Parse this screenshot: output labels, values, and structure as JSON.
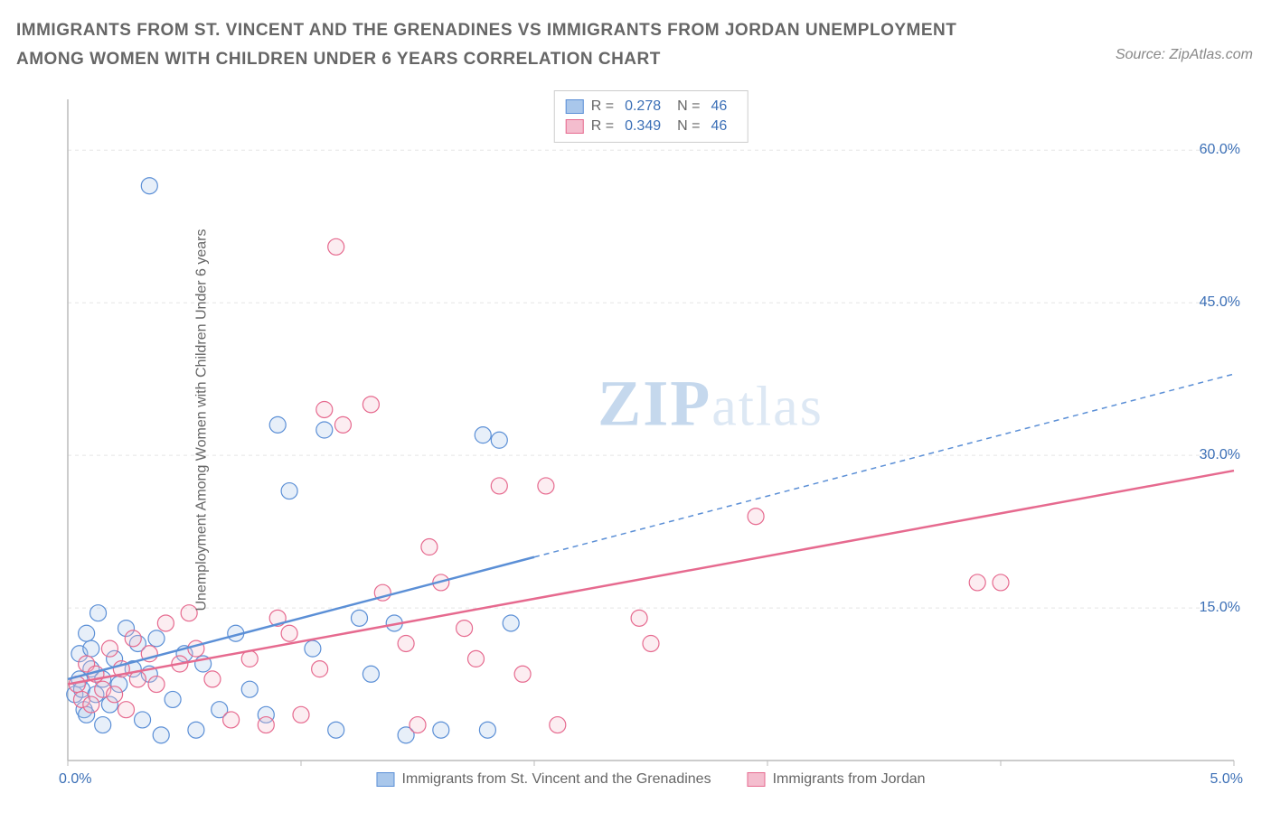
{
  "title": "IMMIGRANTS FROM ST. VINCENT AND THE GRENADINES VS IMMIGRANTS FROM JORDAN UNEMPLOYMENT AMONG WOMEN WITH CHILDREN UNDER 6 YEARS CORRELATION CHART",
  "source": "Source: ZipAtlas.com",
  "y_axis_label": "Unemployment Among Women with Children Under 6 years",
  "watermark_a": "ZIP",
  "watermark_b": "atlas",
  "chart": {
    "type": "scatter",
    "background_color": "#ffffff",
    "grid_color": "#e5e5e5",
    "axis_color": "#bbbbbb",
    "xlim": [
      0.0,
      5.0
    ],
    "ylim": [
      0.0,
      65.0
    ],
    "x_origin_label": "0.0%",
    "x_max_label": "5.0%",
    "x_ticks": [
      0.0,
      1.0,
      2.0,
      3.0,
      4.0,
      5.0
    ],
    "y_ticks": [
      {
        "v": 15.0,
        "label": "15.0%"
      },
      {
        "v": 30.0,
        "label": "30.0%"
      },
      {
        "v": 45.0,
        "label": "45.0%"
      },
      {
        "v": 60.0,
        "label": "60.0%"
      }
    ],
    "marker_radius": 9,
    "marker_stroke_width": 1.2,
    "marker_fill_opacity": 0.28,
    "series": [
      {
        "id": "svg",
        "name": "Immigrants from St. Vincent and the Grenadines",
        "color": "#5b8fd6",
        "fill": "#a9c7eb",
        "R": 0.278,
        "N": 46,
        "trend": {
          "x1": 0.0,
          "y1": 8.0,
          "x2": 2.0,
          "y2": 20.0,
          "x_data_max": 2.0,
          "extend_to": 5.0
        },
        "points": [
          {
            "x": 0.03,
            "y": 6.5
          },
          {
            "x": 0.05,
            "y": 8.0
          },
          {
            "x": 0.05,
            "y": 10.5
          },
          {
            "x": 0.06,
            "y": 7.0
          },
          {
            "x": 0.07,
            "y": 5.0
          },
          {
            "x": 0.08,
            "y": 12.5
          },
          {
            "x": 0.08,
            "y": 4.5
          },
          {
            "x": 0.1,
            "y": 9.0
          },
          {
            "x": 0.1,
            "y": 11.0
          },
          {
            "x": 0.12,
            "y": 6.5
          },
          {
            "x": 0.13,
            "y": 14.5
          },
          {
            "x": 0.15,
            "y": 8.0
          },
          {
            "x": 0.15,
            "y": 3.5
          },
          {
            "x": 0.18,
            "y": 5.5
          },
          {
            "x": 0.2,
            "y": 10.0
          },
          {
            "x": 0.22,
            "y": 7.5
          },
          {
            "x": 0.25,
            "y": 13.0
          },
          {
            "x": 0.28,
            "y": 9.0
          },
          {
            "x": 0.3,
            "y": 11.5
          },
          {
            "x": 0.32,
            "y": 4.0
          },
          {
            "x": 0.35,
            "y": 8.5
          },
          {
            "x": 0.38,
            "y": 12.0
          },
          {
            "x": 0.4,
            "y": 2.5
          },
          {
            "x": 0.35,
            "y": 56.5
          },
          {
            "x": 0.45,
            "y": 6.0
          },
          {
            "x": 0.5,
            "y": 10.5
          },
          {
            "x": 0.55,
            "y": 3.0
          },
          {
            "x": 0.58,
            "y": 9.5
          },
          {
            "x": 0.65,
            "y": 5.0
          },
          {
            "x": 0.72,
            "y": 12.5
          },
          {
            "x": 0.78,
            "y": 7.0
          },
          {
            "x": 0.85,
            "y": 4.5
          },
          {
            "x": 0.9,
            "y": 33.0
          },
          {
            "x": 0.95,
            "y": 26.5
          },
          {
            "x": 1.05,
            "y": 11.0
          },
          {
            "x": 1.1,
            "y": 32.5
          },
          {
            "x": 1.15,
            "y": 3.0
          },
          {
            "x": 1.25,
            "y": 14.0
          },
          {
            "x": 1.3,
            "y": 8.5
          },
          {
            "x": 1.4,
            "y": 13.5
          },
          {
            "x": 1.45,
            "y": 2.5
          },
          {
            "x": 1.6,
            "y": 3.0
          },
          {
            "x": 1.78,
            "y": 32.0
          },
          {
            "x": 1.8,
            "y": 3.0
          },
          {
            "x": 1.85,
            "y": 31.5
          },
          {
            "x": 1.9,
            "y": 13.5
          }
        ]
      },
      {
        "id": "jordan",
        "name": "Immigrants from Jordan",
        "color": "#e66a8f",
        "fill": "#f4bdce",
        "R": 0.349,
        "N": 46,
        "trend": {
          "x1": 0.0,
          "y1": 7.5,
          "x2": 5.0,
          "y2": 28.5,
          "x_data_max": 5.0,
          "extend_to": 5.0
        },
        "points": [
          {
            "x": 0.04,
            "y": 7.5
          },
          {
            "x": 0.06,
            "y": 6.0
          },
          {
            "x": 0.08,
            "y": 9.5
          },
          {
            "x": 0.1,
            "y": 5.5
          },
          {
            "x": 0.12,
            "y": 8.5
          },
          {
            "x": 0.15,
            "y": 7.0
          },
          {
            "x": 0.18,
            "y": 11.0
          },
          {
            "x": 0.2,
            "y": 6.5
          },
          {
            "x": 0.23,
            "y": 9.0
          },
          {
            "x": 0.25,
            "y": 5.0
          },
          {
            "x": 0.28,
            "y": 12.0
          },
          {
            "x": 0.3,
            "y": 8.0
          },
          {
            "x": 0.35,
            "y": 10.5
          },
          {
            "x": 0.38,
            "y": 7.5
          },
          {
            "x": 0.42,
            "y": 13.5
          },
          {
            "x": 0.48,
            "y": 9.5
          },
          {
            "x": 0.55,
            "y": 11.0
          },
          {
            "x": 0.62,
            "y": 8.0
          },
          {
            "x": 0.7,
            "y": 4.0
          },
          {
            "x": 0.78,
            "y": 10.0
          },
          {
            "x": 0.85,
            "y": 3.5
          },
          {
            "x": 0.95,
            "y": 12.5
          },
          {
            "x": 1.0,
            "y": 4.5
          },
          {
            "x": 1.08,
            "y": 9.0
          },
          {
            "x": 1.1,
            "y": 34.5
          },
          {
            "x": 1.18,
            "y": 33.0
          },
          {
            "x": 1.15,
            "y": 50.5
          },
          {
            "x": 1.3,
            "y": 35.0
          },
          {
            "x": 1.35,
            "y": 16.5
          },
          {
            "x": 1.45,
            "y": 11.5
          },
          {
            "x": 1.5,
            "y": 3.5
          },
          {
            "x": 1.55,
            "y": 21.0
          },
          {
            "x": 1.6,
            "y": 17.5
          },
          {
            "x": 1.75,
            "y": 10.0
          },
          {
            "x": 1.85,
            "y": 27.0
          },
          {
            "x": 1.95,
            "y": 8.5
          },
          {
            "x": 2.05,
            "y": 27.0
          },
          {
            "x": 2.1,
            "y": 3.5
          },
          {
            "x": 2.45,
            "y": 14.0
          },
          {
            "x": 2.5,
            "y": 11.5
          },
          {
            "x": 2.95,
            "y": 24.0
          },
          {
            "x": 3.9,
            "y": 17.5
          },
          {
            "x": 4.0,
            "y": 17.5
          },
          {
            "x": 1.7,
            "y": 13.0
          },
          {
            "x": 0.9,
            "y": 14.0
          },
          {
            "x": 0.52,
            "y": 14.5
          }
        ]
      }
    ]
  },
  "legend_top": {
    "r_label": "R =",
    "n_label": "N ="
  }
}
